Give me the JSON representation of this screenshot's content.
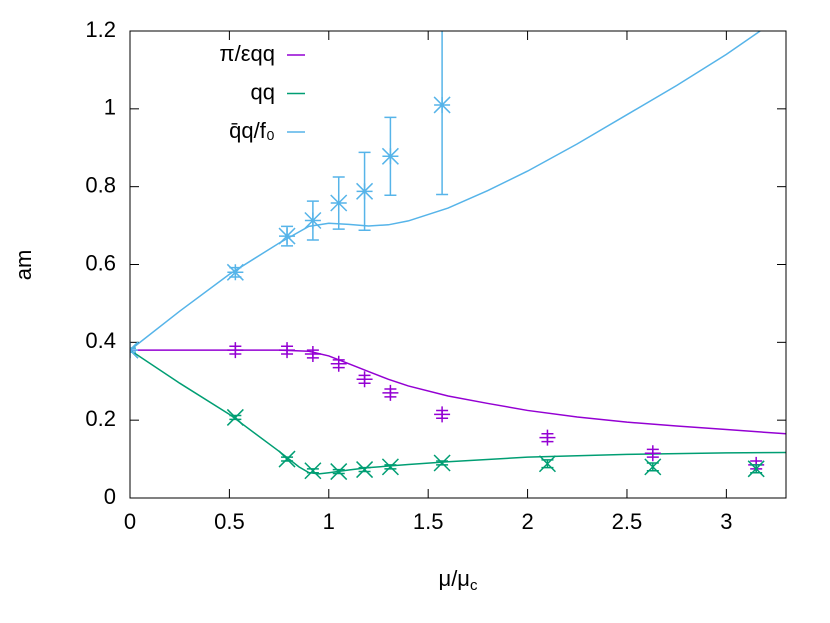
{
  "chart_data": {
    "type": "line",
    "xlabel": "μ/μ",
    "xlabel_sub": "c",
    "ylabel": "am",
    "xlim": [
      0,
      3.3
    ],
    "xticks": [
      0,
      0.5,
      1,
      1.5,
      2,
      2.5,
      3
    ],
    "ylim": [
      0,
      1.2
    ],
    "yticks": [
      0,
      0.2,
      0.4,
      0.6,
      0.8,
      1,
      1.2
    ],
    "legend": "top-left",
    "series": [
      {
        "name": "π/εqq",
        "color": "#9400d3",
        "x": [
          0,
          0.25,
          0.5,
          0.75,
          0.9,
          1.0,
          1.1,
          1.2,
          1.3,
          1.4,
          1.6,
          1.8,
          2.0,
          2.25,
          2.5,
          2.75,
          3.0,
          3.3
        ],
        "values": [
          0.38,
          0.38,
          0.38,
          0.38,
          0.377,
          0.365,
          0.345,
          0.325,
          0.305,
          0.288,
          0.262,
          0.243,
          0.225,
          0.208,
          0.195,
          0.185,
          0.176,
          0.165
        ]
      },
      {
        "name": "qq",
        "color": "#009e73",
        "x": [
          0,
          0.25,
          0.5,
          0.75,
          0.85,
          0.9,
          0.95,
          1.0,
          1.1,
          1.2,
          1.4,
          1.6,
          2.0,
          2.5,
          3.0,
          3.3
        ],
        "values": [
          0.38,
          0.295,
          0.215,
          0.12,
          0.08,
          0.065,
          0.062,
          0.065,
          0.072,
          0.078,
          0.086,
          0.093,
          0.105,
          0.112,
          0.116,
          0.117
        ]
      },
      {
        "name": "q̄q/f₀",
        "color": "#56b4e9",
        "x": [
          0,
          0.25,
          0.5,
          0.75,
          0.9,
          1.0,
          1.1,
          1.2,
          1.3,
          1.4,
          1.6,
          1.8,
          2.0,
          2.25,
          2.5,
          2.75,
          3.0,
          3.17
        ],
        "values": [
          0.38,
          0.48,
          0.575,
          0.655,
          0.698,
          0.706,
          0.703,
          0.699,
          0.702,
          0.712,
          0.745,
          0.79,
          0.84,
          0.91,
          0.985,
          1.06,
          1.14,
          1.2
        ]
      }
    ],
    "points": [
      {
        "color": "#9400d3",
        "marker": "plus",
        "x": [
          0.53,
          0.79,
          0.92,
          1.05,
          1.18,
          1.31,
          1.57,
          2.1,
          2.63,
          3.15
        ],
        "values": [
          0.38,
          0.38,
          0.37,
          0.345,
          0.305,
          0.27,
          0.215,
          0.155,
          0.115,
          0.085
        ],
        "errors": [
          0.01,
          0.01,
          0.01,
          0.01,
          0.01,
          0.01,
          0.01,
          0.01,
          0.01,
          0.01
        ]
      },
      {
        "color": "#009e73",
        "marker": "cross",
        "x": [
          0,
          0.53,
          0.79,
          0.92,
          1.05,
          1.18,
          1.31,
          1.57,
          2.1,
          2.63,
          3.15
        ],
        "values": [
          0.38,
          0.207,
          0.1,
          0.07,
          0.068,
          0.073,
          0.08,
          0.09,
          0.088,
          0.08,
          0.075
        ],
        "errors": [
          0.005,
          0.005,
          0.005,
          0.005,
          0.005,
          0.005,
          0.005,
          0.005,
          0.01,
          0.01,
          0.01
        ]
      },
      {
        "color": "#56b4e9",
        "marker": "star",
        "x": [
          0,
          0.53,
          0.79,
          0.92,
          1.05,
          1.18,
          1.31,
          1.57
        ],
        "values": [
          0.38,
          0.58,
          0.673,
          0.713,
          0.758,
          0.788,
          0.878,
          1.01
        ],
        "errors": [
          0.005,
          0.012,
          0.025,
          0.05,
          0.067,
          0.1,
          0.1,
          0.23
        ]
      }
    ]
  }
}
